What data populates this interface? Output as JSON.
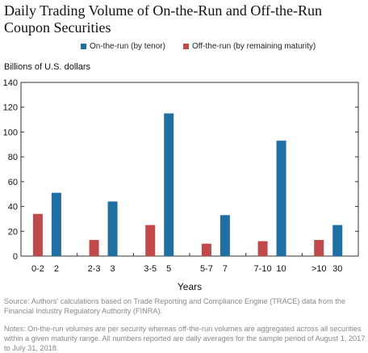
{
  "title": "Daily Trading Volume of On-the-Run and Off-the-Run Coupon Securities",
  "units_label": "Billions of U.S. dollars",
  "legend": [
    {
      "name": "On-the-run (by tenor)",
      "color": "#1f6fa3"
    },
    {
      "name": "Off-the-run (by remaining maturity)",
      "color": "#c04a4a"
    }
  ],
  "source": "Source: Authors' calculations based on Trade Reporting and Compliance Engine (TRACE) data from the Financial Industry Regulatory Authority (FINRA).",
  "notes": "Notes: On-the-run volumes are per security whereas off-the-run volumes are aggregated across all securities within a given maturity range.  All numbers reported are daily averages for the sample period of August 1, 2017 to July 31, 2018.",
  "chart_data": {
    "type": "bar",
    "xlabel": "Years",
    "ylabel": "Billions of U.S. dollars",
    "ylim": [
      0,
      140
    ],
    "yticks": [
      0,
      20,
      40,
      60,
      80,
      100,
      120,
      140
    ],
    "grid": false,
    "legend_position": "top",
    "groups": [
      {
        "off_label": "0-2",
        "off_value": 34,
        "on_label": "2",
        "on_value": 51
      },
      {
        "off_label": "2-3",
        "off_value": 13,
        "on_label": "3",
        "on_value": 44
      },
      {
        "off_label": "3-5",
        "off_value": 25,
        "on_label": "5",
        "on_value": 115
      },
      {
        "off_label": "5-7",
        "off_value": 10,
        "on_label": "7",
        "on_value": 33
      },
      {
        "off_label": "7-10",
        "off_value": 12,
        "on_label": "10",
        "on_value": 93
      },
      {
        "off_label": ">10",
        "off_value": 13,
        "on_label": "30",
        "on_value": 25
      }
    ]
  }
}
